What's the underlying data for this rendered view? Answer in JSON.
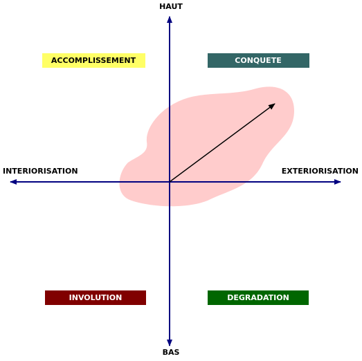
{
  "axes": {
    "top": "HAUT",
    "bottom": "BAS",
    "left": "INTERIORISATION",
    "right": "EXTERIORISATION"
  },
  "quadrants": {
    "top_left": "ACCOMPLISSEMENT",
    "top_right": "CONQUETE",
    "bottom_left": "INVOLUTION",
    "bottom_right": "DEGRADATION"
  }
}
